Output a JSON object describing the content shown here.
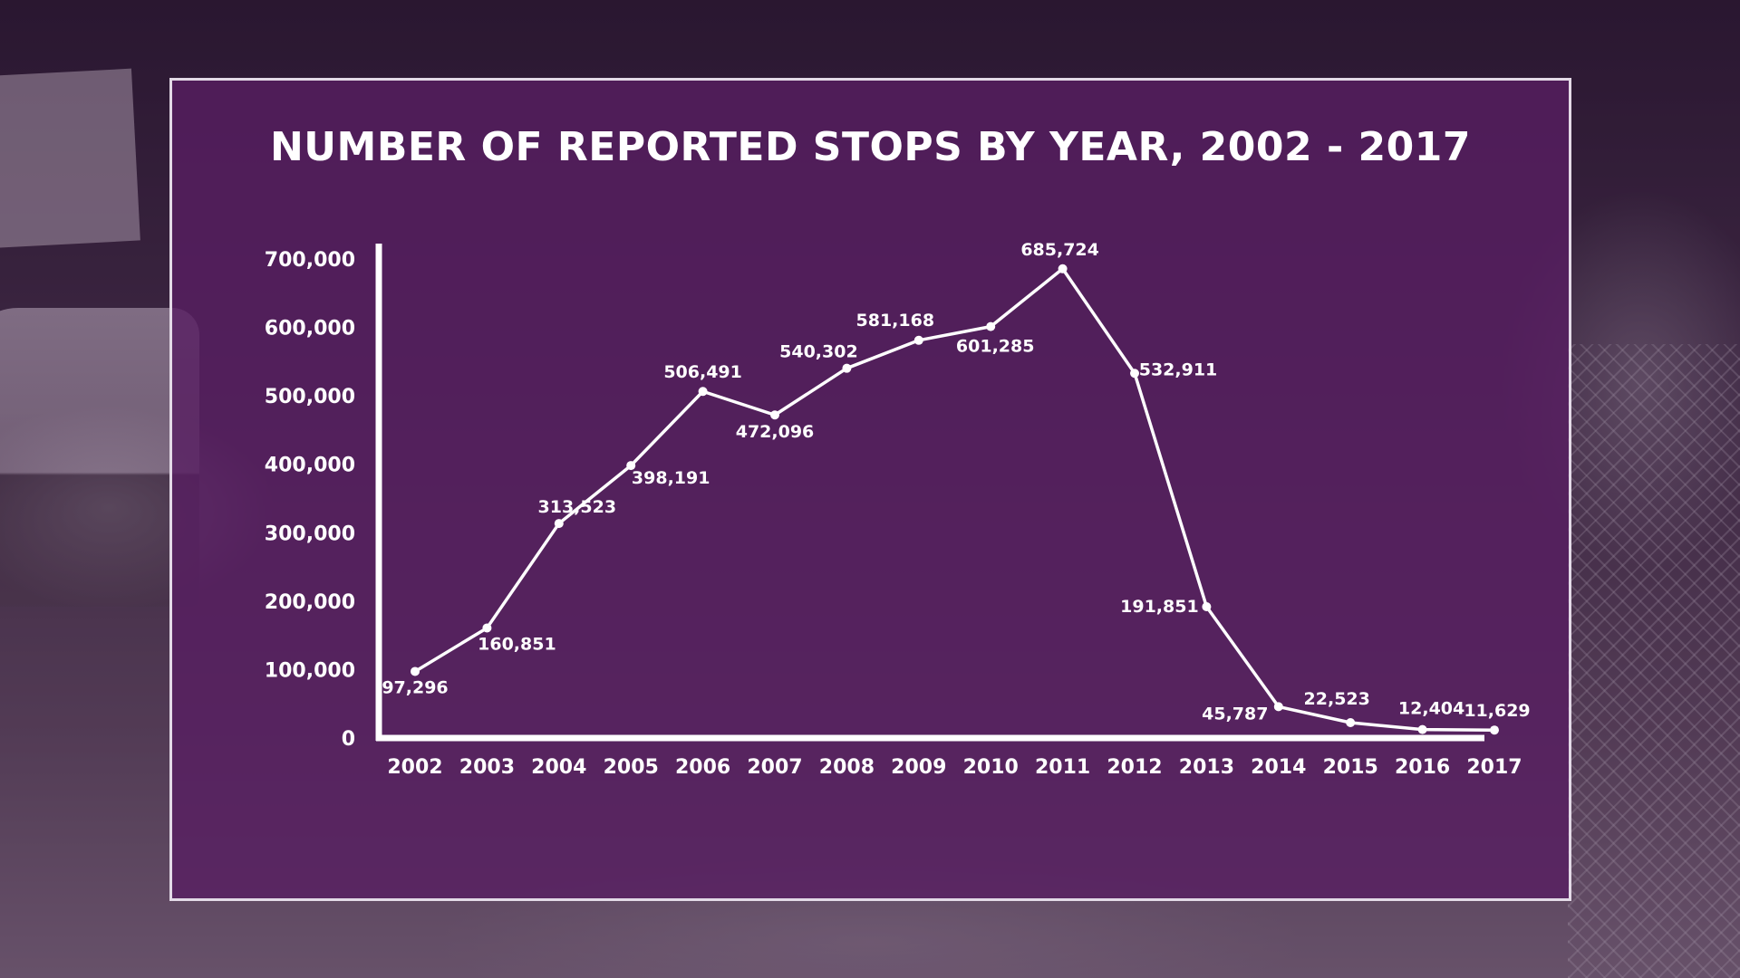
{
  "colors": {
    "panel_tint": "#581e62",
    "line": "#ffffff",
    "text": "#ffffff"
  },
  "chart_data": {
    "type": "line",
    "title": "NUMBER OF REPORTED STOPS BY YEAR, 2002 - 2017",
    "xlabel": "",
    "ylabel": "",
    "ylim": [
      0,
      700000
    ],
    "y_ticks": [
      0,
      100000,
      200000,
      300000,
      400000,
      500000,
      600000,
      700000
    ],
    "y_tick_labels": [
      "0",
      "100,000",
      "200,000",
      "300,000",
      "400,000",
      "500,000",
      "600,000",
      "700,000"
    ],
    "categories": [
      "2002",
      "2003",
      "2004",
      "2005",
      "2006",
      "2007",
      "2008",
      "2009",
      "2010",
      "2011",
      "2012",
      "2013",
      "2014",
      "2015",
      "2016",
      "2017"
    ],
    "values": [
      97296,
      160851,
      313523,
      398191,
      506491,
      472096,
      540302,
      581168,
      601285,
      685724,
      532911,
      191851,
      45787,
      22523,
      12404,
      11629
    ],
    "value_labels": [
      "97,296",
      "160,851",
      "313,523",
      "398,191",
      "506,491",
      "472,096",
      "540,302",
      "581,168",
      "601,285",
      "685,724",
      "532,911",
      "191,851",
      "45,787",
      "22,523",
      "12,404",
      "11,629"
    ],
    "grid": false,
    "legend": "none"
  }
}
